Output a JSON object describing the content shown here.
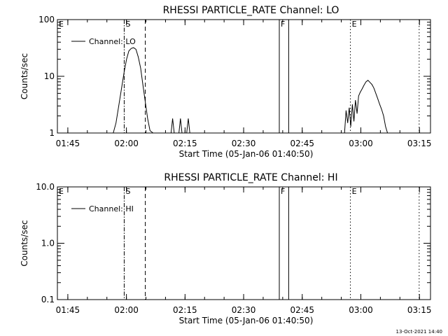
{
  "footer": {
    "timestamp": "13-Oct-2021 14:40"
  },
  "chart_data": [
    {
      "type": "line",
      "title": "RHESSI PARTICLE_RATE Channel: LO",
      "ylabel": "Counts/sec",
      "xlabel": "Start Time (05-Jan-06 01:40:50)",
      "x_range_minutes": [
        1.5,
        97
      ],
      "x_ticks": [
        {
          "t": 4.17,
          "label": "01:45"
        },
        {
          "t": 19.17,
          "label": "02:00"
        },
        {
          "t": 34.17,
          "label": "02:15"
        },
        {
          "t": 49.17,
          "label": "02:30"
        },
        {
          "t": 64.17,
          "label": "02:45"
        },
        {
          "t": 79.17,
          "label": "03:00"
        },
        {
          "t": 94.17,
          "label": "03:15"
        }
      ],
      "y_scale": "log",
      "ylim": [
        1,
        100
      ],
      "y_ticks": [
        {
          "v": 1,
          "label": "1"
        },
        {
          "v": 10,
          "label": "10"
        },
        {
          "v": 100,
          "label": "100"
        }
      ],
      "legend": {
        "label": "Channel: LO",
        "position": "top-left"
      },
      "markers": [
        {
          "t": 18.6,
          "style": "dashdot",
          "letter": "S"
        },
        {
          "t": 24.0,
          "style": "dashed",
          "letter": ""
        },
        {
          "t": 58.3,
          "style": "solid",
          "letter": "F"
        },
        {
          "t": 60.7,
          "style": "solid",
          "letter": ""
        },
        {
          "t": 76.5,
          "style": "dotted",
          "letter": "E"
        },
        {
          "t": 94.1,
          "style": "dotted",
          "letter": ""
        }
      ],
      "corner_letter": "E",
      "series": [
        {
          "x": [
            15.8,
            16.5,
            17.2,
            17.9,
            18.6,
            19.2,
            19.8,
            20.4,
            21.0,
            21.6,
            22.2,
            22.8,
            23.4,
            24.0,
            24.6,
            25.2,
            26.0
          ],
          "y": [
            1,
            1.5,
            3,
            6,
            12,
            20,
            28,
            31,
            32,
            30,
            22,
            14,
            7,
            3.5,
            1.8,
            1.1,
            1
          ]
        },
        {
          "x": [
            30.6,
            31.0,
            31.4,
            32.6,
            33.0,
            33.4,
            34.6,
            35.0,
            35.4
          ],
          "y": [
            1,
            1.8,
            1,
            1,
            1.8,
            1,
            1,
            1.8,
            1
          ]
        },
        {
          "x": [
            75.0,
            75.4,
            75.8,
            76.2,
            76.6,
            77.0,
            77.4,
            77.8,
            78.2,
            78.6,
            79.0,
            79.5,
            80.0,
            80.5,
            81.0,
            81.5,
            82.0,
            82.5,
            83.0,
            83.5,
            84.0,
            84.5,
            85.0,
            85.5,
            86.0
          ],
          "y": [
            1,
            2.5,
            1.5,
            2.8,
            1.3,
            3.2,
            1.6,
            3.8,
            2.2,
            4.5,
            5.2,
            6.0,
            7.0,
            8.0,
            8.5,
            7.8,
            7.2,
            6.2,
            5.0,
            4.0,
            3.2,
            2.6,
            2.0,
            1.3,
            1
          ]
        }
      ]
    },
    {
      "type": "line",
      "title": "RHESSI PARTICLE_RATE Channel: HI",
      "ylabel": "Counts/sec",
      "xlabel": "Start Time (05-Jan-06 01:40:50)",
      "x_range_minutes": [
        1.5,
        97
      ],
      "x_ticks": [
        {
          "t": 4.17,
          "label": "01:45"
        },
        {
          "t": 19.17,
          "label": "02:00"
        },
        {
          "t": 34.17,
          "label": "02:15"
        },
        {
          "t": 49.17,
          "label": "02:30"
        },
        {
          "t": 64.17,
          "label": "02:45"
        },
        {
          "t": 79.17,
          "label": "03:00"
        },
        {
          "t": 94.17,
          "label": "03:15"
        }
      ],
      "y_scale": "log",
      "ylim": [
        0.1,
        10
      ],
      "y_ticks": [
        {
          "v": 0.1,
          "label": "0.1"
        },
        {
          "v": 1,
          "label": "1.0"
        },
        {
          "v": 10,
          "label": "10.0"
        }
      ],
      "legend": {
        "label": "Channel: HI",
        "position": "top-left"
      },
      "markers": [
        {
          "t": 18.6,
          "style": "dashdot",
          "letter": "S"
        },
        {
          "t": 24.0,
          "style": "dashed",
          "letter": ""
        },
        {
          "t": 58.3,
          "style": "solid",
          "letter": "F"
        },
        {
          "t": 60.7,
          "style": "solid",
          "letter": ""
        },
        {
          "t": 76.5,
          "style": "dotted",
          "letter": "E"
        },
        {
          "t": 94.1,
          "style": "dotted",
          "letter": ""
        }
      ],
      "corner_letter": "E",
      "series": []
    }
  ]
}
